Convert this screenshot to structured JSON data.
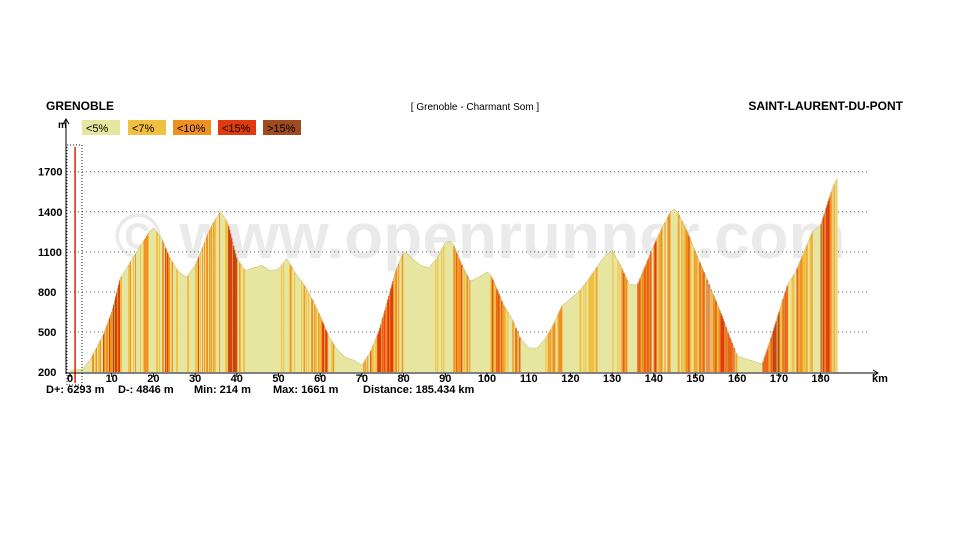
{
  "header": {
    "start_name": "GRENOBLE",
    "end_name": "SAINT-LAURENT-DU-PONT",
    "route_name": "[ Grenoble - Charmant Som ]"
  },
  "watermark": "© www.openrunner.com",
  "legend": [
    {
      "label": "<5%",
      "color": "#e6e6a0"
    },
    {
      "label": "<7%",
      "color": "#f2c040"
    },
    {
      "label": "<10%",
      "color": "#f09020"
    },
    {
      "label": "<15%",
      "color": "#e03a10"
    },
    {
      "label": ">15%",
      "color": "#a04a20"
    }
  ],
  "stats": {
    "d_plus": "D+: 6293 m",
    "d_minus": "D-: 4846 m",
    "min": "Min: 214 m",
    "max": "Max: 1661 m",
    "distance": "Distance: 185.434 km"
  },
  "chart_data": {
    "type": "area",
    "title": "[ Grenoble - Charmant Som ]",
    "xlabel": "km",
    "ylabel": "m",
    "xlim": [
      0,
      190
    ],
    "ylim": [
      200,
      1900
    ],
    "x_ticks": [
      {
        "value": 0,
        "label": "0"
      },
      {
        "value": 10,
        "label": "10"
      },
      {
        "value": 20,
        "label": "20"
      },
      {
        "value": 30,
        "label": "30"
      },
      {
        "value": 40,
        "label": "40"
      },
      {
        "value": 50,
        "label": "50"
      },
      {
        "value": 60,
        "label": "60"
      },
      {
        "value": 70,
        "label": "70"
      },
      {
        "value": 80,
        "label": "80"
      },
      {
        "value": 90,
        "label": "90"
      },
      {
        "value": 100,
        "label": "100"
      },
      {
        "value": 110,
        "label": "110"
      },
      {
        "value": 120,
        "label": "120"
      },
      {
        "value": 130,
        "label": "130"
      },
      {
        "value": 140,
        "label": "140"
      },
      {
        "value": 150,
        "label": "150"
      },
      {
        "value": 160,
        "label": "160"
      },
      {
        "value": 170,
        "label": "170"
      },
      {
        "value": 180,
        "label": "180"
      }
    ],
    "y_ticks": [
      {
        "value": 200,
        "label": "200"
      },
      {
        "value": 500,
        "label": "500"
      },
      {
        "value": 800,
        "label": "800"
      },
      {
        "value": 1100,
        "label": "1100"
      },
      {
        "value": 1400,
        "label": "1400"
      },
      {
        "value": 1700,
        "label": "1700"
      }
    ],
    "grid": true,
    "profile_km": [
      0,
      3,
      5,
      8,
      10,
      12,
      14,
      16,
      18,
      19,
      20,
      22,
      24,
      26,
      27,
      28,
      30,
      32,
      33,
      34,
      35,
      36,
      37,
      38,
      40,
      42,
      44,
      46,
      48,
      50,
      52,
      54,
      56,
      58,
      60,
      62,
      63,
      64,
      66,
      68,
      70,
      72,
      74,
      76,
      78,
      80,
      81,
      82,
      84,
      86,
      88,
      90,
      91,
      92,
      94,
      96,
      98,
      100,
      101,
      102,
      104,
      106,
      108,
      110,
      112,
      114,
      116,
      118,
      119,
      120,
      122,
      124,
      126,
      128,
      130,
      132,
      134,
      136,
      138,
      140,
      142,
      144,
      145,
      146,
      148,
      150,
      152,
      154,
      156,
      158,
      160,
      162,
      164,
      165,
      166,
      168,
      170,
      172,
      174,
      176,
      178,
      180,
      182,
      183,
      184
    ],
    "profile_elev": [
      214,
      220,
      300,
      480,
      650,
      900,
      1000,
      1100,
      1200,
      1250,
      1280,
      1200,
      1050,
      950,
      930,
      910,
      1000,
      1150,
      1230,
      1300,
      1350,
      1400,
      1360,
      1300,
      1050,
      960,
      980,
      1000,
      960,
      970,
      1050,
      940,
      860,
      750,
      620,
      470,
      420,
      370,
      310,
      290,
      250,
      350,
      500,
      720,
      950,
      1100,
      1080,
      1050,
      1000,
      980,
      1050,
      1170,
      1180,
      1150,
      1000,
      880,
      910,
      950,
      920,
      850,
      700,
      600,
      450,
      380,
      380,
      450,
      560,
      700,
      720,
      750,
      800,
      880,
      970,
      1060,
      1110,
      1000,
      860,
      850,
      1000,
      1150,
      1280,
      1400,
      1420,
      1380,
      1250,
      1100,
      950,
      800,
      650,
      480,
      320,
      300,
      280,
      270,
      260,
      450,
      650,
      850,
      950,
      1100,
      1250,
      1300,
      1500,
      1590,
      1650
    ],
    "start_marker_km": 0.5
  }
}
